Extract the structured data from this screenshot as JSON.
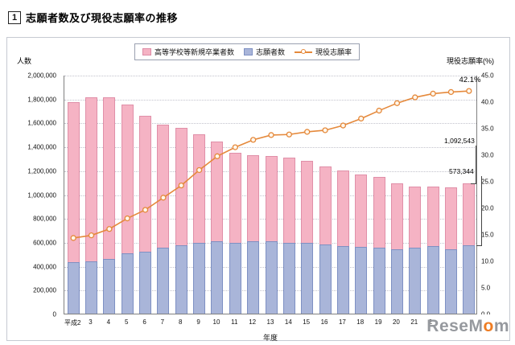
{
  "header": {
    "number": "1",
    "title": "志願者数及び現役志願率の推移"
  },
  "legend": {
    "items": [
      {
        "label": "高等学校等新規卒業者数",
        "color": "#f5b3c4"
      },
      {
        "label": "志願者数",
        "color": "#a9b5d9"
      },
      {
        "label": "現役志願率",
        "color": "#e5893b"
      }
    ]
  },
  "axes": {
    "left_title": "人数",
    "right_title": "現役志願率(%)",
    "x_title": "年度",
    "left_ticks": [
      "2,000,000",
      "1,800,000",
      "1,600,000",
      "1,400,000",
      "1,200,000",
      "1,000,000",
      "800,000",
      "600,000",
      "400,000",
      "200,000",
      "0"
    ],
    "right_ticks": [
      "45.0",
      "40.0",
      "35.0",
      "30.0",
      "25.0",
      "20.0",
      "15.0",
      "10.0",
      "5.0",
      "0.0"
    ]
  },
  "annotations": {
    "rate_label": "42.1%",
    "graduates_label": "1,092,543",
    "applicants_label": "573,344"
  },
  "watermark": {
    "part1": "ReseM",
    "accent": "o",
    "part2": "m"
  },
  "chart_data": {
    "type": "bar+line",
    "title": "志願者数及び現役志願率の推移",
    "xlabel": "年度",
    "ylabel_left": "人数",
    "ylabel_right": "現役志願率(%)",
    "categories": [
      "平成2",
      "3",
      "4",
      "5",
      "6",
      "7",
      "8",
      "9",
      "10",
      "11",
      "12",
      "13",
      "14",
      "15",
      "16",
      "17",
      "18",
      "19",
      "20",
      "21",
      "22",
      "23",
      "24"
    ],
    "series": [
      {
        "name": "高等学校等新規卒業者数",
        "type": "bar",
        "axis": "left",
        "color": "#f5b3c4",
        "values": [
          1770000,
          1810000,
          1810000,
          1750000,
          1660000,
          1580000,
          1555000,
          1500000,
          1440000,
          1350000,
          1330000,
          1320000,
          1305000,
          1280000,
          1230000,
          1200000,
          1165000,
          1145000,
          1090000,
          1065000,
          1065000,
          1058000,
          1092543
        ]
      },
      {
        "name": "志願者数",
        "type": "bar",
        "axis": "left",
        "color": "#a9b5d9",
        "values": [
          430000,
          440000,
          460000,
          505000,
          520000,
          550000,
          570000,
          590000,
          605000,
          595000,
          605000,
          605000,
          595000,
          595000,
          580000,
          565000,
          560000,
          550000,
          540000,
          550000,
          565000,
          540000,
          573344
        ]
      },
      {
        "name": "現役志願率",
        "type": "line",
        "axis": "right",
        "color": "#e5893b",
        "values": [
          14.4,
          14.9,
          16.1,
          18.1,
          19.7,
          22.0,
          24.3,
          27.2,
          29.8,
          31.5,
          32.9,
          33.8,
          33.9,
          34.4,
          34.7,
          35.6,
          36.9,
          38.4,
          39.8,
          40.9,
          41.6,
          41.9,
          42.1
        ]
      }
    ],
    "left_axis": {
      "min": 0,
      "max": 2000000,
      "step": 200000
    },
    "right_axis": {
      "min": 0,
      "max": 45,
      "step": 5
    },
    "grid": true,
    "legend_position": "top-center"
  }
}
